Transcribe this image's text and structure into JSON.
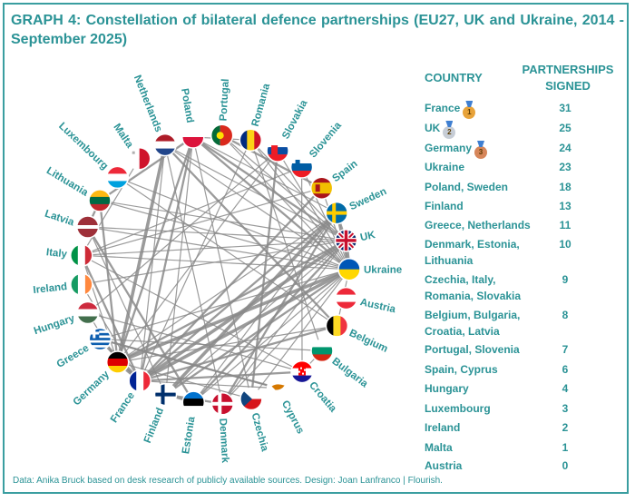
{
  "title": "GRAPH 4: Constellation of bilateral defence partnerships (EU27, UK and Ukraine, 2014 - September 2025)",
  "footer": "Data: Anika Bruck based on desk research of publicly available sources. Design: Joan Lanfranco | Flourish.",
  "table": {
    "header_country": "COUNTRY",
    "header_partnerships": "PARTNERSHIPS SIGNED",
    "rows": [
      {
        "country": "France",
        "value": "31",
        "medal": "1",
        "medal_color": "#e8a33a"
      },
      {
        "country": "UK",
        "value": "25",
        "medal": "2",
        "medal_color": "#c7cdd6"
      },
      {
        "country": "Germany",
        "value": "24",
        "medal": "3",
        "medal_color": "#d6865a"
      },
      {
        "country": "Ukraine",
        "value": "23"
      },
      {
        "country": "Poland, Sweden",
        "value": "18"
      },
      {
        "country": "Finland",
        "value": "13"
      },
      {
        "country": "Greece, Netherlands",
        "value": "11"
      },
      {
        "country": "Denmark, Estonia, Lithuania",
        "value": "10"
      },
      {
        "country": "Czechia, Italy, Romania, Slovakia",
        "value": "9"
      },
      {
        "country": "Belgium, Bulgaria, Croatia, Latvia",
        "value": "8"
      },
      {
        "country": "Portugal, Slovenia",
        "value": "7"
      },
      {
        "country": "Spain, Cyprus",
        "value": "6"
      },
      {
        "country": "Hungary",
        "value": "4"
      },
      {
        "country": "Luxembourg",
        "value": "3"
      },
      {
        "country": "Ireland",
        "value": "2"
      },
      {
        "country": "Malta",
        "value": "1"
      },
      {
        "country": "Austria",
        "value": "0"
      }
    ]
  },
  "chart_data": {
    "type": "network",
    "nodes": [
      {
        "name": "Portugal",
        "flag": "PT"
      },
      {
        "name": "Romania",
        "flag": "RO"
      },
      {
        "name": "Slovakia",
        "flag": "SK"
      },
      {
        "name": "Slovenia",
        "flag": "SI"
      },
      {
        "name": "Spain",
        "flag": "ES"
      },
      {
        "name": "Sweden",
        "flag": "SE"
      },
      {
        "name": "UK",
        "flag": "UK"
      },
      {
        "name": "Ukraine",
        "flag": "UA"
      },
      {
        "name": "Austria",
        "flag": "AT"
      },
      {
        "name": "Belgium",
        "flag": "BE"
      },
      {
        "name": "Bulgaria",
        "flag": "BG"
      },
      {
        "name": "Croatia",
        "flag": "HR"
      },
      {
        "name": "Cyprus",
        "flag": "CY"
      },
      {
        "name": "Czechia",
        "flag": "CZ"
      },
      {
        "name": "Denmark",
        "flag": "DK"
      },
      {
        "name": "Estonia",
        "flag": "EE"
      },
      {
        "name": "Finland",
        "flag": "FI"
      },
      {
        "name": "France",
        "flag": "FR"
      },
      {
        "name": "Germany",
        "flag": "DE"
      },
      {
        "name": "Greece",
        "flag": "GR"
      },
      {
        "name": "Hungary",
        "flag": "HU"
      },
      {
        "name": "Ireland",
        "flag": "IE"
      },
      {
        "name": "Italy",
        "flag": "IT"
      },
      {
        "name": "Latvia",
        "flag": "LV"
      },
      {
        "name": "Lithuania",
        "flag": "LT"
      },
      {
        "name": "Luxembourg",
        "flag": "LU"
      },
      {
        "name": "Malta",
        "flag": "MT"
      },
      {
        "name": "Netherlands",
        "flag": "NL"
      },
      {
        "name": "Poland",
        "flag": "PL"
      }
    ],
    "links": [
      [
        "France",
        "UK",
        3
      ],
      [
        "France",
        "Germany",
        3
      ],
      [
        "UK",
        "Ukraine",
        3
      ],
      [
        "France",
        "Ukraine",
        3
      ],
      [
        "Germany",
        "Ukraine",
        3
      ],
      [
        "UK",
        "Germany",
        2
      ],
      [
        "Poland",
        "Ukraine",
        2
      ],
      [
        "Sweden",
        "Finland",
        3
      ],
      [
        "Sweden",
        "Ukraine",
        2
      ],
      [
        "France",
        "Greece",
        3
      ],
      [
        "France",
        "Sweden",
        2
      ],
      [
        "UK",
        "Sweden",
        2
      ],
      [
        "UK",
        "Poland",
        2
      ],
      [
        "France",
        "Poland",
        2
      ],
      [
        "Germany",
        "Poland",
        2
      ],
      [
        "Finland",
        "Ukraine",
        2
      ],
      [
        "Finland",
        "Denmark",
        2
      ],
      [
        "Finland",
        "Estonia",
        2
      ],
      [
        "Estonia",
        "Latvia",
        2
      ],
      [
        "Latvia",
        "Lithuania",
        2
      ],
      [
        "Lithuania",
        "Poland",
        2
      ],
      [
        "Sweden",
        "Denmark",
        2
      ],
      [
        "Netherlands",
        "Germany",
        3
      ],
      [
        "Netherlands",
        "France",
        1
      ],
      [
        "Netherlands",
        "UK",
        1
      ],
      [
        "Netherlands",
        "Ukraine",
        1
      ],
      [
        "Greece",
        "Cyprus",
        2
      ],
      [
        "France",
        "Cyprus",
        1
      ],
      [
        "France",
        "Croatia",
        2
      ],
      [
        "France",
        "Italy",
        2
      ],
      [
        "France",
        "Spain",
        2
      ],
      [
        "France",
        "Belgium",
        2
      ],
      [
        "Belgium",
        "Netherlands",
        2
      ],
      [
        "Belgium",
        "Luxembourg",
        1
      ],
      [
        "Belgium",
        "Ukraine",
        1
      ],
      [
        "Germany",
        "Lithuania",
        2
      ],
      [
        "UK",
        "Estonia",
        2
      ],
      [
        "UK",
        "Finland",
        1
      ],
      [
        "UK",
        "Denmark",
        1
      ],
      [
        "UK",
        "Romania",
        1
      ],
      [
        "UK",
        "Italy",
        1
      ],
      [
        "UK",
        "Latvia",
        1
      ],
      [
        "UK",
        "Lithuania",
        1
      ],
      [
        "Germany",
        "Slovakia",
        1
      ],
      [
        "Germany",
        "Czechia",
        1
      ],
      [
        "Germany",
        "Hungary",
        1
      ],
      [
        "Germany",
        "Sweden",
        1
      ],
      [
        "Germany",
        "Italy",
        1
      ],
      [
        "Poland",
        "Sweden",
        1
      ],
      [
        "Poland",
        "Finland",
        1
      ],
      [
        "Poland",
        "Romania",
        1
      ],
      [
        "Poland",
        "Czechia",
        1
      ],
      [
        "Romania",
        "Bulgaria",
        1
      ],
      [
        "Romania",
        "Ukraine",
        1
      ],
      [
        "Bulgaria",
        "Greece",
        1
      ],
      [
        "Bulgaria",
        "Croatia",
        1
      ],
      [
        "Slovakia",
        "Czechia",
        2
      ],
      [
        "Slovakia",
        "Ukraine",
        1
      ],
      [
        "Slovakia",
        "Hungary",
        1
      ],
      [
        "Slovenia",
        "Croatia",
        1
      ],
      [
        "Slovenia",
        "Italy",
        1
      ],
      [
        "Spain",
        "Portugal",
        2
      ],
      [
        "Spain",
        "Italy",
        1
      ],
      [
        "Portugal",
        "Ukraine",
        1
      ],
      [
        "Portugal",
        "UK",
        1
      ],
      [
        "Denmark",
        "Ukraine",
        1
      ],
      [
        "Estonia",
        "Ukraine",
        1
      ],
      [
        "Latvia",
        "Ukraine",
        1
      ],
      [
        "Lithuania",
        "Ukraine",
        1
      ],
      [
        "Czechia",
        "Ukraine",
        1
      ],
      [
        "Italy",
        "Ukraine",
        1
      ],
      [
        "Greece",
        "Ukraine",
        1
      ],
      [
        "Luxembourg",
        "Ukraine",
        1
      ],
      [
        "Ireland",
        "France",
        1
      ],
      [
        "Ireland",
        "UK",
        1
      ],
      [
        "Malta",
        "Italy",
        1
      ],
      [
        "Croatia",
        "Italy",
        1
      ],
      [
        "Hungary",
        "Croatia",
        1
      ],
      [
        "Sweden",
        "Estonia",
        1
      ],
      [
        "Finland",
        "Latvia",
        1
      ],
      [
        "Denmark",
        "Netherlands",
        1
      ],
      [
        "Romania",
        "France",
        1
      ],
      [
        "Slovenia",
        "Ukraine",
        1
      ],
      [
        "Cyprus",
        "Greece",
        1
      ],
      [
        "Spain",
        "Ukraine",
        1
      ],
      [
        "Belgium",
        "Germany",
        1
      ]
    ]
  }
}
